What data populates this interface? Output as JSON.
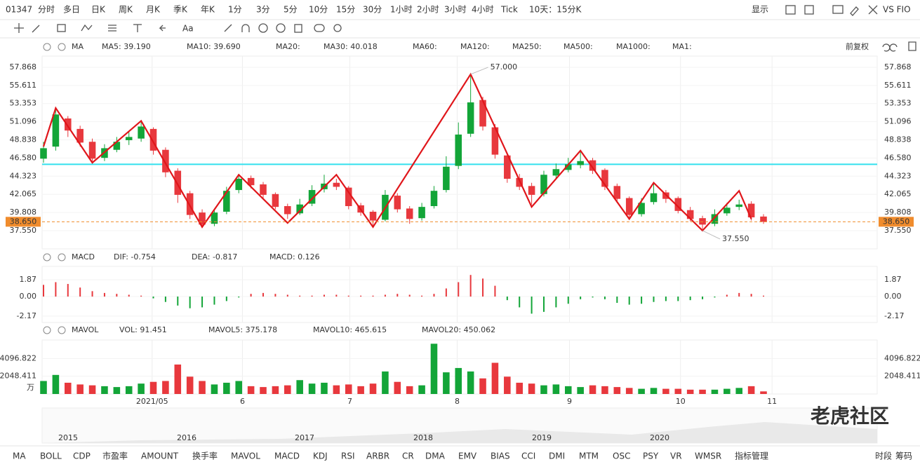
{
  "toolbar": {
    "code": "01347",
    "periods": [
      "分时",
      "多日",
      "日K",
      "周K",
      "月K",
      "季K",
      "年K",
      "1分",
      "3分",
      "5分",
      "10分",
      "15分",
      "30分",
      "1小时",
      "2小时",
      "3小时",
      "4小时",
      "Tick",
      "10天：15分K"
    ],
    "active": 2,
    "display": "显示",
    "compare": "VS FIO",
    "text_tool": "Aa"
  },
  "ma_row": {
    "name": "MA",
    "items": [
      {
        "label": "MA5: 39.190",
        "color": "#f08c2d"
      },
      {
        "label": "MA10: 39.690",
        "color": "#1a9ee0"
      },
      {
        "label": "MA20:",
        "color": "#f4b6cf"
      },
      {
        "label": "MA30: 40.018",
        "color": "#1a6fc8"
      },
      {
        "label": "MA60:",
        "color": "#9fe3e0"
      },
      {
        "label": "MA120:",
        "color": "#f5a6a6"
      },
      {
        "label": "MA250:",
        "color": "#a9dcf5"
      },
      {
        "label": "MA500:",
        "color": "#f8d3a6"
      },
      {
        "label": "MA1000:",
        "color": "#c9b6e8"
      },
      {
        "label": "MA1:",
        "color": "#c4c4c4"
      }
    ],
    "adjust": "前复权"
  },
  "macd_row": {
    "name": "MACD",
    "items": [
      {
        "label": "DIF: -0.754",
        "color": "#f08c2d"
      },
      {
        "label": "DEA: -0.817",
        "color": "#1a9ee0"
      },
      {
        "label": "MACD: 0.126",
        "color": "#d46bd6"
      }
    ]
  },
  "mavol_row": {
    "name": "MAVOL",
    "items": [
      {
        "label": "VOL: 91.451",
        "color": "#e8383d"
      },
      {
        "label": "MAVOL5: 375.178",
        "color": "#f08c2d"
      },
      {
        "label": "MAVOL10: 465.615",
        "color": "#1a9ee0"
      },
      {
        "label": "MAVOL20: 450.062",
        "color": "#d46bd6"
      }
    ]
  },
  "chart_data": [
    {
      "type": "candlestick",
      "open": [
        46.5,
        48.0,
        51.5,
        50.2,
        48.6,
        46.6,
        47.6,
        48.8,
        49.0,
        50.2,
        47.6,
        45.0,
        42.2,
        39.8,
        38.4,
        39.9,
        42.6,
        44.1,
        43.3,
        42.1,
        40.6,
        39.7,
        40.9,
        42.7,
        43.5,
        42.9,
        40.7,
        39.9,
        38.9,
        41.9,
        40.3,
        39.1,
        40.6,
        42.6,
        45.6,
        49.6,
        53.8,
        50.4,
        46.9,
        44.1,
        43.1,
        42.1,
        44.4,
        45.1,
        45.7,
        46.3,
        45.1,
        43.1,
        41.6,
        39.6,
        41.1,
        42.3,
        41.6,
        40.1,
        39.1,
        38.4,
        39.7,
        40.5,
        40.9,
        39.3
      ],
      "high": [
        48.6,
        52.8,
        51.8,
        50.6,
        49.0,
        48.3,
        49.2,
        49.8,
        51.2,
        50.4,
        47.9,
        45.3,
        42.5,
        40.2,
        40.3,
        43.0,
        44.6,
        44.4,
        43.6,
        42.3,
        40.9,
        41.5,
        43.2,
        44.5,
        44.0,
        43.1,
        41.0,
        40.1,
        42.6,
        42.2,
        40.6,
        41.0,
        43.1,
        46.8,
        51.0,
        57.0,
        54.2,
        50.8,
        47.2,
        44.6,
        43.5,
        45.0,
        45.9,
        46.6,
        47.4,
        46.6,
        45.3,
        43.4,
        41.8,
        41.6,
        43.4,
        42.6,
        41.8,
        40.5,
        39.4,
        40.2,
        41.0,
        41.4,
        41.2,
        39.6
      ],
      "low": [
        46.0,
        47.5,
        49.2,
        48.0,
        46.0,
        46.2,
        47.3,
        48.2,
        48.6,
        47.0,
        44.2,
        41.0,
        39.0,
        37.9,
        38.1,
        39.6,
        42.2,
        42.8,
        41.6,
        40.2,
        39.0,
        39.5,
        40.6,
        42.3,
        42.6,
        40.2,
        39.4,
        38.2,
        38.7,
        39.8,
        38.4,
        38.8,
        40.3,
        42.3,
        45.2,
        49.2,
        50.0,
        46.5,
        43.5,
        42.6,
        40.8,
        41.8,
        44.0,
        44.8,
        45.3,
        44.6,
        42.6,
        41.0,
        39.0,
        39.3,
        40.8,
        41.0,
        39.7,
        38.7,
        37.55,
        38.1,
        39.4,
        40.1,
        38.8,
        38.4
      ],
      "close": [
        47.8,
        52.0,
        50.0,
        48.5,
        46.5,
        47.8,
        48.6,
        49.2,
        50.5,
        47.5,
        44.8,
        42.0,
        39.5,
        38.3,
        39.8,
        42.5,
        44.0,
        43.2,
        42.0,
        40.5,
        39.6,
        40.8,
        42.6,
        43.4,
        43.0,
        40.6,
        39.8,
        38.8,
        42.0,
        40.2,
        39.0,
        40.5,
        42.5,
        45.5,
        49.5,
        53.5,
        50.5,
        47.0,
        44.0,
        43.0,
        42.0,
        44.5,
        45.2,
        45.8,
        46.2,
        45.0,
        43.0,
        41.5,
        39.5,
        41.0,
        42.2,
        41.5,
        40.0,
        39.0,
        38.3,
        39.6,
        40.4,
        40.8,
        39.2,
        38.65
      ],
      "up_color": "#13a538",
      "down_color": "#e8383d",
      "xlim": [
        0,
        59
      ],
      "xticks": [
        {
          "value": 8.9,
          "label": "2021/05"
        },
        {
          "value": 16.3,
          "label": "6"
        },
        {
          "value": 25.1,
          "label": "7"
        },
        {
          "value": 33.9,
          "label": "8"
        },
        {
          "value": 43.1,
          "label": "9"
        },
        {
          "value": 52.2,
          "label": "10"
        },
        {
          "value": 59.7,
          "label": "11"
        }
      ],
      "ylim": [
        35.28,
        59.26
      ],
      "yticks": [
        {
          "value": 37.55,
          "label": "37.550"
        },
        39.808,
        42.065,
        44.323,
        {
          "value": 46.58,
          "label": "46.580"
        },
        48.838,
        51.096,
        53.353,
        55.611,
        57.868
      ],
      "zigzag": {
        "x": [
          0,
          1,
          4,
          8,
          13,
          16,
          20,
          24,
          27,
          35,
          40,
          44,
          48,
          50,
          54,
          57,
          58
        ],
        "values": [
          48.0,
          52.8,
          46.0,
          51.2,
          38.0,
          44.5,
          38.5,
          44.5,
          38.0,
          57.0,
          40.5,
          47.5,
          39.0,
          43.5,
          37.55,
          42.5,
          39.0
        ],
        "color": "#e0161b"
      },
      "hline": {
        "value": 45.8,
        "color": "#33e0ee"
      },
      "last_price": {
        "value": 38.65,
        "label": "38.650",
        "color": "#f08c2d"
      },
      "annotations": [
        {
          "x": 35,
          "value": 57.0,
          "label": "57.000"
        },
        {
          "x": 54,
          "value": 37.55,
          "label": "37.550"
        }
      ]
    },
    {
      "type": "bar",
      "values": [
        1.3,
        1.6,
        1.4,
        1.0,
        0.6,
        0.4,
        0.3,
        0.2,
        0.1,
        -0.2,
        -0.6,
        -1.0,
        -1.3,
        -1.2,
        -0.9,
        -0.5,
        -0.1,
        0.3,
        0.4,
        0.3,
        0.2,
        0.1,
        0.1,
        0.2,
        0.2,
        0.1,
        0.1,
        0.1,
        0.2,
        0.3,
        0.2,
        0.1,
        0.3,
        0.9,
        1.6,
        2.4,
        2.0,
        1.2,
        -0.4,
        -1.2,
        -1.9,
        -1.7,
        -1.2,
        -0.8,
        -0.3,
        -0.1,
        -0.3,
        -0.7,
        -0.9,
        -0.8,
        -0.6,
        -0.5,
        -0.5,
        -0.4,
        -0.3,
        -0.1,
        0.2,
        0.4,
        0.3,
        0.1
      ],
      "pos_color": "#e8383d",
      "neg_color": "#13a538",
      "ylim": [
        -2.88,
        3.35
      ],
      "yticks": [
        -2.17,
        {
          "value": 0,
          "label": "0.00"
        },
        1.87
      ]
    },
    {
      "type": "bar",
      "values": [
        1500,
        2200,
        1300,
        1100,
        1000,
        900,
        800,
        900,
        1200,
        1400,
        1500,
        3400,
        2000,
        1500,
        1100,
        1300,
        1500,
        900,
        800,
        900,
        1000,
        1600,
        1200,
        1300,
        1000,
        1100,
        900,
        1200,
        2600,
        1400,
        900,
        1000,
        5800,
        2500,
        3000,
        2600,
        1800,
        3600,
        2000,
        1300,
        1200,
        1000,
        1100,
        900,
        800,
        1000,
        900,
        800,
        700,
        600,
        700,
        600,
        600,
        500,
        500,
        500,
        600,
        700,
        900,
        300
      ],
      "ylim": [
        0,
        6230
      ],
      "yticks": [
        2048.411,
        4096.822
      ],
      "unit": "万"
    }
  ],
  "overview": {
    "years": [
      "2015",
      "2016",
      "2017",
      "2018",
      "2019",
      "2020"
    ]
  },
  "tabs": {
    "items": [
      "MA",
      "BOLL",
      "CDP",
      "市盈率",
      "AMOUNT",
      "换手率",
      "MAVOL",
      "MACD",
      "KDJ",
      "RSI",
      "ARBR",
      "CR",
      "DMA",
      "EMV",
      "BIAS",
      "CCI",
      "DMI",
      "MTM",
      "OSC",
      "PSY",
      "VR",
      "WMSR",
      "指标管理"
    ],
    "active": [
      0,
      6,
      7,
      22
    ],
    "right": [
      "时段",
      "筹码"
    ]
  },
  "watermark": "老虎社区"
}
